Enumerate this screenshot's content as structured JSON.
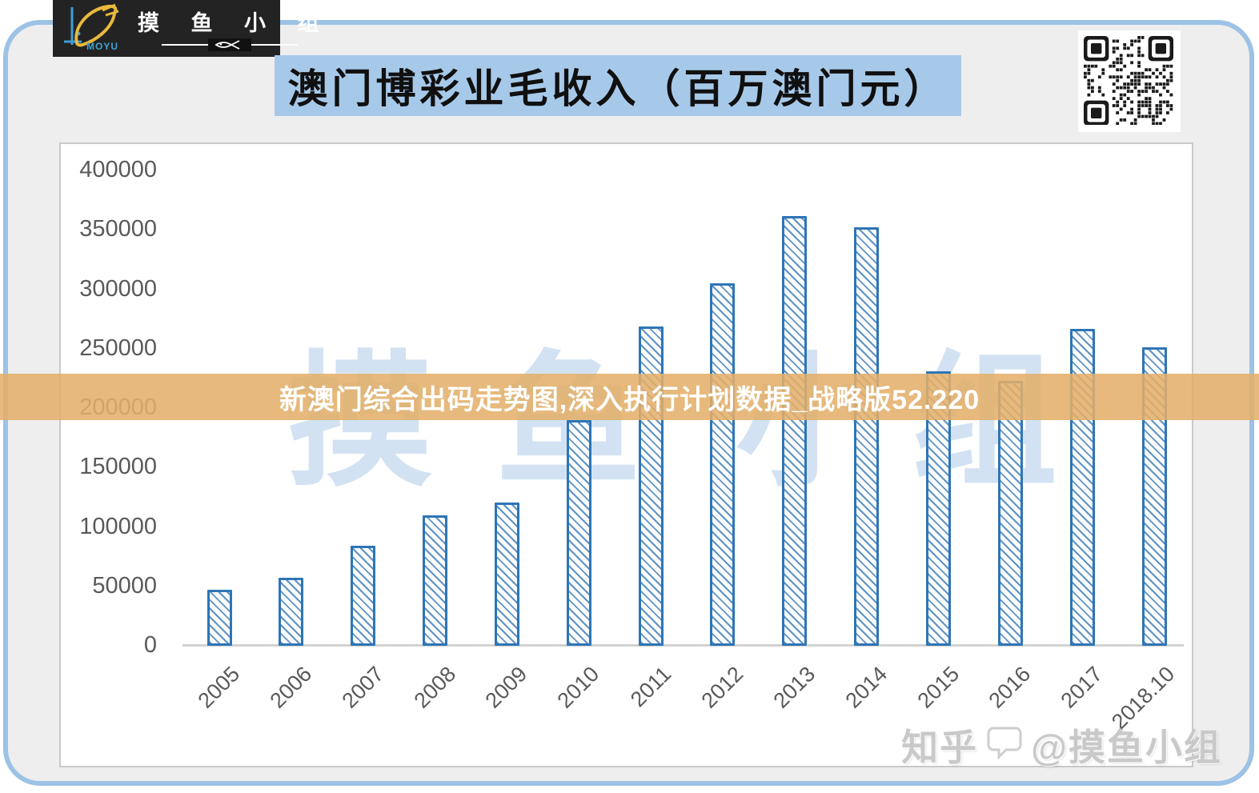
{
  "header": {
    "logo": {
      "brand_cn": "摸 鱼 小 组",
      "brand_en": "MOYU"
    },
    "title": "澳门博彩业毛收入（百万澳门元）"
  },
  "banner": {
    "text": "新澳门综合出码走势图,深入执行计划数据_战略版52.220"
  },
  "watermarks": {
    "background_chars": [
      "摸",
      "鱼",
      "小",
      "组"
    ],
    "bottom_right_prefix": "知乎",
    "bottom_right_handle": "@摸鱼小组"
  },
  "colors": {
    "bar_border": "#2e75b6",
    "bar_hatch": "#3a76b4",
    "title_bg": "#a7c9e9",
    "banner_bg": "#e4af69",
    "frame_border": "#9cc2e5",
    "axis_text": "#595959"
  },
  "chart_data": {
    "type": "bar",
    "title": "澳门博彩业毛收入（百万澳门元）",
    "unit": "百万澳门元",
    "categories": [
      "2005",
      "2006",
      "2007",
      "2008",
      "2009",
      "2010",
      "2011",
      "2012",
      "2013",
      "2014",
      "2015",
      "2016",
      "2017",
      "2018.10"
    ],
    "values": [
      47000,
      57500,
      84000,
      110000,
      120500,
      190000,
      269000,
      305000,
      361500,
      352500,
      231000,
      223000,
      266500,
      251500
    ],
    "ylim": [
      0,
      400000
    ],
    "ytick_step": 50000,
    "yticks": [
      400000,
      350000,
      300000,
      250000,
      200000,
      150000,
      100000,
      50000,
      0
    ],
    "grid": false,
    "legend": null,
    "bar_style": "diagonal-hatch"
  }
}
